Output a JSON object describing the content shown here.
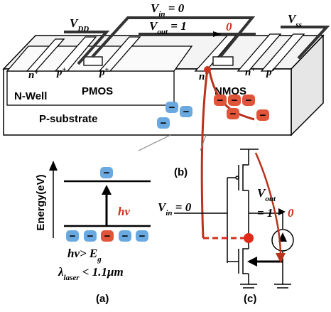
{
  "device": {
    "vdd": [
      "V",
      "DD"
    ],
    "vin": [
      "V",
      "in",
      " = 0"
    ],
    "vout": [
      "V",
      "out",
      " = 1"
    ],
    "vout_flip": "0",
    "vss": [
      "V",
      "ss"
    ],
    "regions": [
      [
        "n",
        "+"
      ],
      [
        "p",
        "+"
      ],
      [
        "p",
        "+"
      ],
      [
        "n",
        "+"
      ],
      [
        "n",
        "+"
      ],
      [
        "p",
        "+"
      ]
    ],
    "nwell": "N-Well",
    "pmos": "PMOS",
    "nmos": "NMOS",
    "substrate": "P-substrate",
    "electron_sign": "−"
  },
  "panel_a": {
    "axis_label": "Energy(eV)",
    "photon": "hν",
    "condition": [
      "hν> E",
      "g"
    ],
    "wavelength": [
      "λ",
      "laser",
      " < 1.1μm"
    ],
    "caption": "(a)"
  },
  "panel_b": {
    "caption": "(b)"
  },
  "panel_c": {
    "vin": [
      "V",
      "in",
      " = 0"
    ],
    "vout": [
      "V",
      "out"
    ],
    "vout_value": "= 1",
    "vout_flip": "0",
    "caption": "(c)"
  }
}
